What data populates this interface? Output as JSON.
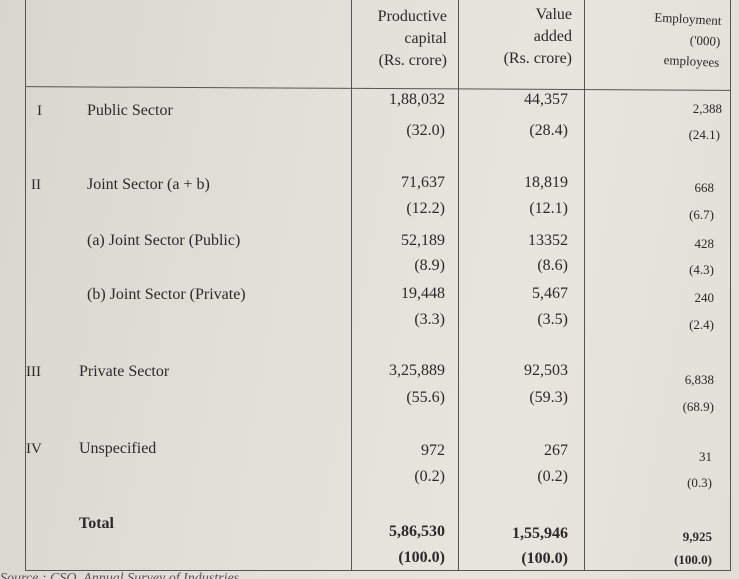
{
  "table": {
    "headers": {
      "capital": [
        "Productive",
        "capital",
        "(Rs. crore)"
      ],
      "value_added": [
        "Value",
        "added",
        "(Rs. crore)"
      ],
      "employment": [
        "Employment",
        "('000)",
        "employees"
      ]
    },
    "rows": [
      {
        "num": "I",
        "label": "Public Sector",
        "capital": "1,88,032",
        "capital_pct": "(32.0)",
        "value_added": "44,357",
        "value_added_pct": "(28.4)",
        "employment": "2,388",
        "employment_pct": "(24.1)"
      },
      {
        "num": "II",
        "label": "Joint Sector (a + b)",
        "capital": "71,637",
        "capital_pct": "(12.2)",
        "value_added": "18,819",
        "value_added_pct": "(12.1)",
        "employment": "668",
        "employment_pct": "(6.7)"
      },
      {
        "num": "",
        "label": "(a) Joint Sector (Public)",
        "capital": "52,189",
        "capital_pct": "(8.9)",
        "value_added": "13352",
        "value_added_pct": "(8.6)",
        "employment": "428",
        "employment_pct": "(4.3)"
      },
      {
        "num": "",
        "label": "(b) Joint Sector (Private)",
        "capital": "19,448",
        "capital_pct": "(3.3)",
        "value_added": "5,467",
        "value_added_pct": "(3.5)",
        "employment": "240",
        "employment_pct": "(2.4)"
      },
      {
        "num": "III",
        "label": "Private Sector",
        "capital": "3,25,889",
        "capital_pct": "(55.6)",
        "value_added": "92,503",
        "value_added_pct": "(59.3)",
        "employment": "6,838",
        "employment_pct": "(68.9)"
      },
      {
        "num": "IV",
        "label": "Unspecified",
        "capital": "972",
        "capital_pct": "(0.2)",
        "value_added": "267",
        "value_added_pct": "(0.2)",
        "employment": "31",
        "employment_pct": "(0.3)"
      },
      {
        "num": "",
        "label": "Total",
        "capital": "5,86,530",
        "capital_pct": "(100.0)",
        "value_added": "1,55,946",
        "value_added_pct": "(100.0)",
        "employment": "9,925",
        "employment_pct": "(100.0)"
      }
    ]
  },
  "source_note": "Source : CSO, Annual Survey of Industries"
}
